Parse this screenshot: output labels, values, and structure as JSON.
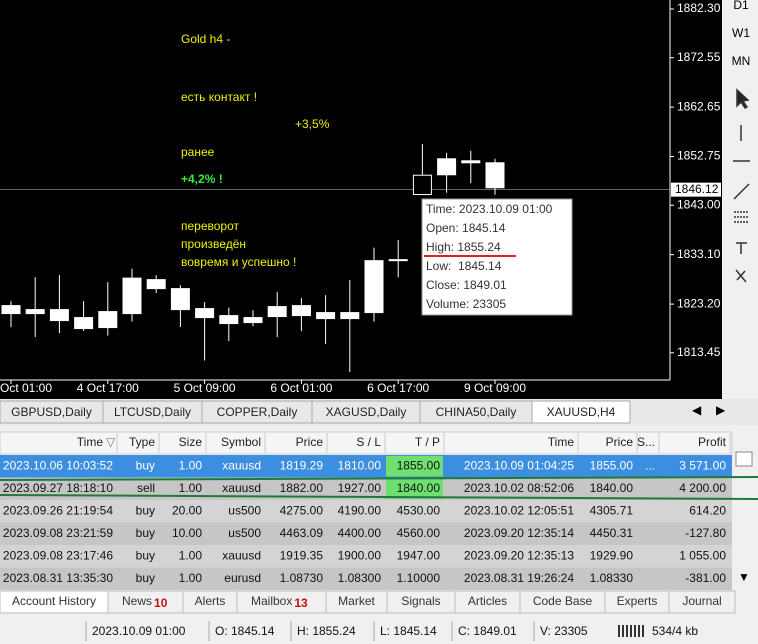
{
  "chart_data": {
    "type": "candlestick",
    "categories": [
      "Oct 01:00",
      null,
      null,
      null,
      "4 Oct 17:00",
      null,
      null,
      null,
      "5 Oct 09:00",
      null,
      null,
      null,
      "6 Oct 01:00",
      null,
      null,
      null,
      "6 Oct 17:00",
      null,
      null,
      null,
      "9 Oct 09:00"
    ],
    "open": [
      1822.9,
      1822.1,
      1822.1,
      1820.5,
      1821.7,
      1828.4,
      1828.1,
      1826.3,
      1822.3,
      1820.9,
      1820.5,
      1822.7,
      1822.9,
      1821.5,
      1821.5,
      1831.9,
      1832.1,
      1845.14,
      1852.3,
      1851.9,
      1851.5
    ],
    "high": [
      1823.8,
      1828.6,
      1829.0,
      1823.8,
      1827.6,
      1830.3,
      1829.0,
      1827.0,
      1823.6,
      1822.5,
      1822.0,
      1825.6,
      1824.4,
      1825.0,
      1828.0,
      1834.5,
      1836.0,
      1855.24,
      1853.5,
      1853.9,
      1852.3
    ],
    "low": [
      1818.6,
      1816.6,
      1817.4,
      1817.8,
      1816.9,
      1819.7,
      1825.4,
      1818.6,
      1811.9,
      1815.8,
      1818.8,
      1816.6,
      1817.8,
      1815.2,
      1809.6,
      1819.7,
      1828.6,
      1845.14,
      1845.5,
      1847.4,
      1845.1
    ],
    "close": [
      1821.3,
      1821.3,
      1819.9,
      1818.3,
      1818.5,
      1821.3,
      1826.3,
      1822.1,
      1820.5,
      1819.3,
      1819.5,
      1820.7,
      1820.9,
      1820.3,
      1820.3,
      1821.5,
      1831.9,
      1849.01,
      1849.1,
      1851.5,
      1846.5
    ],
    "up_color": "#000000",
    "down_color": "#ffffff",
    "outline_color": "#ffffff",
    "ylim": [
      1808.4,
      1884.1
    ],
    "yticks": [
      {
        "value": 1813.45,
        "label": "1813.45"
      },
      {
        "value": 1823.2,
        "label": "1823.20"
      },
      {
        "value": 1833.1,
        "label": "1833.10"
      },
      {
        "value": 1843,
        "label": "1843.00"
      },
      {
        "value": 1852.75,
        "label": "1852.75"
      },
      {
        "value": 1862.65,
        "label": "1862.65"
      },
      {
        "value": 1872.55,
        "label": "1872.55"
      },
      {
        "value": 1882.3,
        "label": "1882.30"
      }
    ],
    "current_price": 1846.12,
    "annotations": [
      "Gold h4 -",
      "есть контакт !",
      "+3,5%",
      "ранее",
      "+4,2% !",
      "переворот",
      "произведён",
      "вовремя и успешно !"
    ],
    "tooltip": [
      "Time: 2023.10.09 01:00",
      "Open: 1845.14",
      "High: 1855.24",
      "Low:  1845.14",
      "Close: 1849.01",
      "Volume: 23305"
    ]
  },
  "timeframes": [
    "D1",
    "W1",
    "MN"
  ],
  "symbol_tabs": [
    "GBPUSD,Daily",
    "LTCUSD,Daily",
    "COPPER,Daily",
    "XAGUSD,Daily",
    "CHINA50,Daily",
    "XAUUSD,H4"
  ],
  "table": {
    "headers": [
      "Time",
      "Type",
      "Size",
      "Symbol",
      "Price",
      "S / L",
      "T / P",
      "Time",
      "Price",
      "S...",
      "Profit"
    ],
    "rows": [
      [
        "2023.10.06 10:03:52",
        "buy",
        "1.00",
        "xauusd",
        "1819.29",
        "1810.00",
        "1855.00",
        "2023.10.09 01:04:25",
        "1855.00",
        "...",
        "3 571.00"
      ],
      [
        "2023.09.27 18:18:10",
        "sell",
        "1.00",
        "xauusd",
        "1882.00",
        "1927.00",
        "1840.00",
        "2023.10.02 08:52:06",
        "1840.00",
        null,
        "4 200.00"
      ],
      [
        "2023.09.26 21:19:54",
        "buy",
        "20.00",
        "us500",
        "4275.00",
        "4190.00",
        "4530.00",
        "2023.10.02 12:05:51",
        "4305.71",
        null,
        "614.20"
      ],
      [
        "2023.09.08 23:21:59",
        "buy",
        "10.00",
        "us500",
        "4463.09",
        "4400.00",
        "4560.00",
        "2023.09.20 12:35:14",
        "4450.31",
        null,
        "-127.80"
      ],
      [
        "2023.09.08 23:17:46",
        "buy",
        "1.00",
        "xauusd",
        "1919.35",
        "1900.00",
        "1947.00",
        "2023.09.20 12:35:13",
        "1929.90",
        null,
        "1 055.00"
      ],
      [
        "2023.08.31 13:35:30",
        "buy",
        "1.00",
        "eurusd",
        "1.08730",
        "1.08300",
        "1.10000",
        "2023.08.31 19:26:24",
        "1.08330",
        null,
        "-381.00"
      ]
    ]
  },
  "bottom_tabs": [
    {
      "label": "Account History"
    },
    {
      "label": "News",
      "badge": "10"
    },
    {
      "label": "Alerts"
    },
    {
      "label": "Mailbox",
      "badge": "13"
    },
    {
      "label": "Market"
    },
    {
      "label": "Signals"
    },
    {
      "label": "Articles"
    },
    {
      "label": "Code Base"
    },
    {
      "label": "Experts"
    },
    {
      "label": "Journal"
    }
  ],
  "status_bar": [
    "2023.10.09 01:00",
    "O: 1845.14",
    "H: 1855.24",
    "L: 1845.14",
    "C: 1849.01",
    "V: 23305",
    "534/4 kb"
  ]
}
